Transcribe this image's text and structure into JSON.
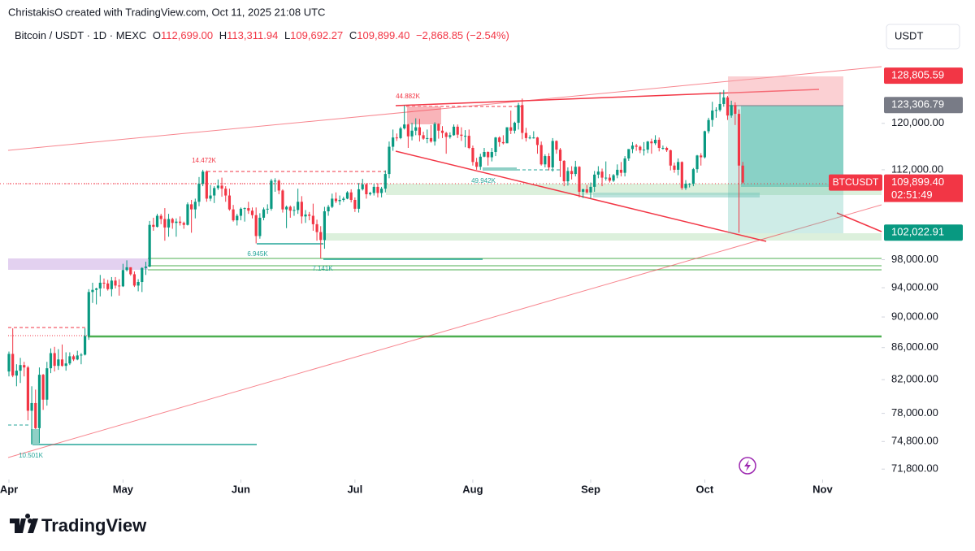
{
  "header": {
    "author_line": "ChristakisO created with TradingView.com, Oct 11, 2025 21:08 UTC",
    "brand": "TradingView"
  },
  "chart_data": {
    "type": "candlestick",
    "symbol": "Bitcoin / USDT · 1D · MEXC",
    "ohlc_header": [
      {
        "label": "O",
        "value": "112,699.00"
      },
      {
        "label": "H",
        "value": "113,311.94"
      },
      {
        "label": "L",
        "value": "109,692.27"
      },
      {
        "label": "C",
        "value": "109,899.40"
      }
    ],
    "change": "−2,868.85 (−2.54%)",
    "currency": "USDT",
    "up_color": "#089981",
    "down_color": "#f23645",
    "log_scale": true,
    "ylim": [
      70700,
      139000
    ],
    "yticks": [
      {
        "value": 71800,
        "label": "71,800.00"
      },
      {
        "value": 74800,
        "label": "74,800.00"
      },
      {
        "value": 78000,
        "label": "78,000.00"
      },
      {
        "value": 82000,
        "label": "82,000.00"
      },
      {
        "value": 86000,
        "label": "86,000.00"
      },
      {
        "value": 90000,
        "label": "90,000.00"
      },
      {
        "value": 94000,
        "label": "94,000.00"
      },
      {
        "value": 98000,
        "label": "98,000.00"
      },
      {
        "value": 112000,
        "label": "112,000.00"
      },
      {
        "value": 120000,
        "label": "120,000.00"
      }
    ],
    "xlim": [
      -2.35,
      229.5
    ],
    "xticks": [
      {
        "value": 0,
        "label": "Apr"
      },
      {
        "value": 30,
        "label": "May"
      },
      {
        "value": 61,
        "label": "Jun"
      },
      {
        "value": 91,
        "label": "Jul"
      },
      {
        "value": 122,
        "label": "Aug"
      },
      {
        "value": 153,
        "label": "Sep"
      },
      {
        "value": 183,
        "label": "Oct"
      },
      {
        "value": 214,
        "label": "Nov"
      }
    ],
    "price_labels": [
      {
        "value": 128805.59,
        "label": "128,805.59",
        "color": "#f23645"
      },
      {
        "value": 123306.79,
        "label": "123,306.79",
        "color": "#787b86"
      },
      {
        "value": 109899.4,
        "label": "109,899.40",
        "color": "#f23645"
      },
      {
        "value": 102022.91,
        "label": "102,022.91",
        "color": "#089981"
      }
    ],
    "symbol_tag": "BTCUSDT",
    "countdown": "02:51:49",
    "annotations": [
      "44.882K",
      "14.472K",
      "49.942K",
      "6.945K",
      "7.141K",
      "10.501K"
    ],
    "candles": [
      [
        83000,
        85500,
        82400,
        85200
      ],
      [
        85200,
        88500,
        82300,
        82500
      ],
      [
        82500,
        83900,
        81200,
        83100
      ],
      [
        83100,
        84700,
        81600,
        83800
      ],
      [
        83800,
        84200,
        82400,
        83500
      ],
      [
        83500,
        83700,
        77200,
        78300
      ],
      [
        78300,
        81200,
        74500,
        79200
      ],
      [
        79200,
        80800,
        76200,
        76300
      ],
      [
        76300,
        83500,
        74600,
        82600
      ],
      [
        82600,
        82700,
        78400,
        79600
      ],
      [
        79600,
        84200,
        78900,
        83400
      ],
      [
        83400,
        85900,
        82800,
        85300
      ],
      [
        85300,
        86100,
        83000,
        83700
      ],
      [
        83700,
        85800,
        83200,
        84500
      ],
      [
        84500,
        86400,
        83600,
        83700
      ],
      [
        83700,
        85400,
        83100,
        84000
      ],
      [
        84000,
        85400,
        83800,
        84900
      ],
      [
        84900,
        85100,
        84300,
        84500
      ],
      [
        84500,
        85600,
        84400,
        85000
      ],
      [
        85000,
        85300,
        83900,
        85100
      ],
      [
        85100,
        88500,
        85000,
        87500
      ],
      [
        87500,
        93800,
        87000,
        93400
      ],
      [
        93400,
        94700,
        91900,
        93700
      ],
      [
        93700,
        94000,
        91700,
        93900
      ],
      [
        93900,
        95800,
        92800,
        94700
      ],
      [
        94700,
        95300,
        93900,
        94600
      ],
      [
        94600,
        95100,
        93600,
        93800
      ],
      [
        93800,
        95500,
        92800,
        95000
      ],
      [
        95000,
        95500,
        93900,
        94300
      ],
      [
        94300,
        95200,
        92900,
        94200
      ],
      [
        94200,
        97400,
        94100,
        96500
      ],
      [
        96500,
        97900,
        96300,
        96900
      ],
      [
        96900,
        96900,
        95700,
        95900
      ],
      [
        95900,
        96300,
        94100,
        94300
      ],
      [
        94300,
        95200,
        93500,
        94800
      ],
      [
        94800,
        96900,
        93400,
        96800
      ],
      [
        96800,
        97700,
        95800,
        97000
      ],
      [
        97000,
        103800,
        96900,
        103200
      ],
      [
        103200,
        104300,
        102300,
        102900
      ],
      [
        102900,
        104900,
        102800,
        104600
      ],
      [
        104600,
        104900,
        103300,
        104100
      ],
      [
        104100,
        105800,
        100800,
        102800
      ],
      [
        102800,
        104900,
        101400,
        104100
      ],
      [
        104100,
        104300,
        102600,
        103500
      ],
      [
        103500,
        104200,
        101400,
        103700
      ],
      [
        103700,
        104500,
        103100,
        103500
      ],
      [
        103500,
        103700,
        102600,
        103200
      ],
      [
        103200,
        106700,
        103100,
        106400
      ],
      [
        106400,
        107100,
        102000,
        105600
      ],
      [
        105600,
        107300,
        104200,
        106800
      ],
      [
        106800,
        110800,
        106100,
        109700
      ],
      [
        109700,
        112000,
        109300,
        111700
      ],
      [
        111700,
        111900,
        106800,
        107300
      ],
      [
        107300,
        109500,
        106900,
        107800
      ],
      [
        107800,
        109300,
        106600,
        109000
      ],
      [
        109000,
        110400,
        108700,
        109400
      ],
      [
        109400,
        110700,
        107600,
        108900
      ],
      [
        108900,
        109300,
        106800,
        107800
      ],
      [
        107800,
        108900,
        105400,
        105600
      ],
      [
        105600,
        106300,
        103700,
        103900
      ],
      [
        103900,
        104900,
        103100,
        104600
      ],
      [
        104600,
        105900,
        103900,
        105700
      ],
      [
        105700,
        105900,
        103700,
        105800
      ],
      [
        105800,
        106800,
        104900,
        105400
      ],
      [
        105400,
        105900,
        104200,
        104700
      ],
      [
        104700,
        105900,
        100400,
        101500
      ],
      [
        101500,
        105000,
        101100,
        104300
      ],
      [
        104300,
        105900,
        103900,
        105600
      ],
      [
        105600,
        106400,
        104900,
        105700
      ],
      [
        105700,
        110500,
        105400,
        110200
      ],
      [
        110200,
        110600,
        108400,
        110200
      ],
      [
        110200,
        110400,
        108000,
        108600
      ],
      [
        108600,
        108800,
        105100,
        105600
      ],
      [
        105600,
        106200,
        102700,
        106000
      ],
      [
        106000,
        106200,
        104300,
        105400
      ],
      [
        105400,
        106100,
        104600,
        105500
      ],
      [
        105500,
        108900,
        104900,
        106800
      ],
      [
        106800,
        107700,
        103400,
        104500
      ],
      [
        104500,
        105500,
        103500,
        104800
      ],
      [
        104800,
        105200,
        103900,
        104600
      ],
      [
        104600,
        106500,
        102300,
        103300
      ],
      [
        103300,
        104000,
        100800,
        102100
      ],
      [
        102100,
        103000,
        98200,
        100900
      ],
      [
        100900,
        106000,
        99600,
        105300
      ],
      [
        105300,
        106300,
        104600,
        106000
      ],
      [
        106000,
        108100,
        105800,
        107300
      ],
      [
        107300,
        108300,
        106600,
        106900
      ],
      [
        106900,
        107800,
        106300,
        107100
      ],
      [
        107100,
        107600,
        106800,
        107300
      ],
      [
        107300,
        108500,
        107200,
        108300
      ],
      [
        108300,
        108800,
        106700,
        107100
      ],
      [
        107100,
        107500,
        105200,
        105700
      ],
      [
        105700,
        109800,
        105100,
        108800
      ],
      [
        108800,
        110500,
        108600,
        109600
      ],
      [
        109600,
        109800,
        107300,
        108000
      ],
      [
        108000,
        108400,
        107800,
        108200
      ],
      [
        108200,
        109700,
        107800,
        109200
      ],
      [
        109200,
        109700,
        107500,
        108200
      ],
      [
        108200,
        109200,
        107500,
        108900
      ],
      [
        108900,
        111900,
        108300,
        111300
      ],
      [
        111300,
        116800,
        110600,
        115900
      ],
      [
        115900,
        118900,
        115200,
        117500
      ],
      [
        117500,
        118200,
        116900,
        117400
      ],
      [
        117400,
        119400,
        117200,
        119100
      ],
      [
        119100,
        123200,
        118900,
        119800
      ],
      [
        119800,
        119900,
        115700,
        117700
      ],
      [
        117700,
        120100,
        117000,
        118700
      ],
      [
        118700,
        120900,
        117900,
        119300
      ],
      [
        119300,
        120800,
        116800,
        117900
      ],
      [
        117900,
        118500,
        117100,
        117300
      ],
      [
        117300,
        118900,
        116500,
        117400
      ],
      [
        117400,
        119700,
        116600,
        116800
      ],
      [
        116800,
        120200,
        116100,
        119900
      ],
      [
        119900,
        120000,
        117300,
        118700
      ],
      [
        118700,
        119500,
        117400,
        118300
      ],
      [
        118300,
        118500,
        114700,
        117600
      ],
      [
        117600,
        118400,
        117300,
        117900
      ],
      [
        117900,
        119800,
        117800,
        119400
      ],
      [
        119400,
        119800,
        117400,
        118000
      ],
      [
        118000,
        119300,
        116900,
        117800
      ],
      [
        117800,
        118800,
        115800,
        117800
      ],
      [
        117800,
        118900,
        115500,
        115700
      ],
      [
        115700,
        116100,
        112700,
        113300
      ],
      [
        113300,
        114000,
        112000,
        112500
      ],
      [
        112500,
        114700,
        112000,
        114200
      ],
      [
        114200,
        115700,
        114100,
        115000
      ],
      [
        115000,
        115100,
        112700,
        114100
      ],
      [
        114100,
        115700,
        113400,
        115000
      ],
      [
        115000,
        117600,
        114300,
        117500
      ],
      [
        117500,
        117700,
        115900,
        116700
      ],
      [
        116700,
        117900,
        116300,
        116500
      ],
      [
        116500,
        119300,
        116500,
        119300
      ],
      [
        119300,
        122300,
        118100,
        118700
      ],
      [
        118700,
        120300,
        118200,
        120100
      ],
      [
        120100,
        123700,
        118900,
        123300
      ],
      [
        123300,
        124500,
        117200,
        118300
      ],
      [
        118300,
        119200,
        116800,
        117400
      ],
      [
        117400,
        117900,
        117200,
        117500
      ],
      [
        117500,
        118600,
        117300,
        117500
      ],
      [
        117500,
        117600,
        114700,
        116200
      ],
      [
        116200,
        116800,
        112700,
        112900
      ],
      [
        112900,
        114600,
        112400,
        114300
      ],
      [
        114300,
        114800,
        111900,
        112400
      ],
      [
        112400,
        117400,
        111700,
        116900
      ],
      [
        116900,
        117000,
        114700,
        115400
      ],
      [
        115400,
        115700,
        110800,
        113500
      ],
      [
        113500,
        113600,
        109300,
        110100
      ],
      [
        110100,
        112400,
        109400,
        111800
      ],
      [
        111800,
        112600,
        110400,
        111300
      ],
      [
        111300,
        113500,
        110900,
        112500
      ],
      [
        112500,
        112600,
        107500,
        108400
      ],
      [
        108400,
        108900,
        107400,
        108800
      ],
      [
        108800,
        109500,
        108100,
        108300
      ],
      [
        108300,
        109900,
        107300,
        109200
      ],
      [
        109200,
        111800,
        108400,
        111200
      ],
      [
        111200,
        112600,
        110600,
        111700
      ],
      [
        111700,
        112200,
        109300,
        110700
      ],
      [
        110700,
        113400,
        110200,
        110700
      ],
      [
        110700,
        111300,
        109900,
        110200
      ],
      [
        110200,
        111300,
        110000,
        111100
      ],
      [
        111100,
        112900,
        110600,
        112000
      ],
      [
        112000,
        113300,
        110900,
        111500
      ],
      [
        111500,
        114300,
        110900,
        113900
      ],
      [
        113900,
        115500,
        113500,
        115500
      ],
      [
        115500,
        116700,
        114800,
        116100
      ],
      [
        116100,
        116400,
        115200,
        115900
      ],
      [
        115900,
        116100,
        114800,
        115300
      ],
      [
        115300,
        116700,
        114400,
        115400
      ],
      [
        115400,
        116900,
        114800,
        116800
      ],
      [
        116800,
        117300,
        114700,
        116500
      ],
      [
        116500,
        117900,
        116200,
        117100
      ],
      [
        117100,
        117500,
        115100,
        115700
      ],
      [
        115700,
        116100,
        115400,
        115700
      ],
      [
        115700,
        115900,
        115000,
        115300
      ],
      [
        115300,
        115400,
        111900,
        112700
      ],
      [
        112700,
        113200,
        111500,
        112000
      ],
      [
        112000,
        113900,
        111100,
        113300
      ],
      [
        113300,
        113400,
        108700,
        109000
      ],
      [
        109000,
        110300,
        108700,
        109700
      ],
      [
        109700,
        109800,
        109100,
        109700
      ],
      [
        109700,
        112300,
        109300,
        112100
      ],
      [
        112100,
        114500,
        111500,
        114400
      ],
      [
        114400,
        114800,
        112700,
        114100
      ],
      [
        114100,
        118700,
        113900,
        118600
      ],
      [
        118600,
        121000,
        118200,
        120600
      ],
      [
        120600,
        123900,
        119400,
        122300
      ],
      [
        122300,
        122900,
        121000,
        122400
      ],
      [
        122400,
        125700,
        122100,
        123500
      ],
      [
        123500,
        126100,
        123000,
        124700
      ],
      [
        124700,
        125000,
        120600,
        121400
      ],
      [
        121400,
        124100,
        121000,
        123300
      ],
      [
        123300,
        123800,
        119700,
        121700
      ],
      [
        121700,
        122500,
        102000,
        112699
      ],
      [
        112699,
        113311.94,
        109692.27,
        109899.4
      ]
    ]
  }
}
